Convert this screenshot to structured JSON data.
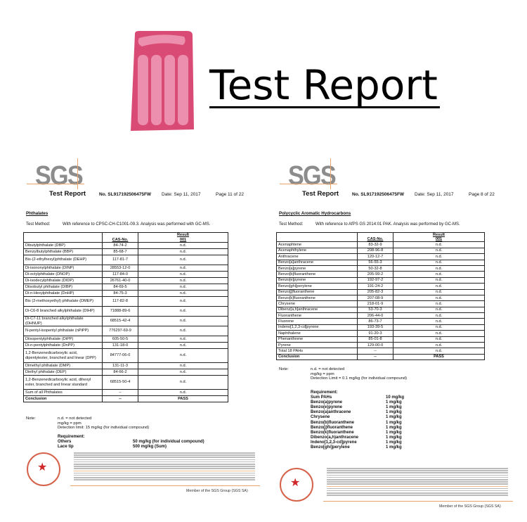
{
  "banner": {
    "title": "Test Report",
    "icon": "inflatable-pool-float",
    "accent": "#d94b75"
  },
  "left_doc": {
    "logo": "SGS",
    "header": {
      "title": "Test Report",
      "number": "No. SL917192506475FW",
      "date": "Date: Sep 11, 2017",
      "page": "Page 11 of 22"
    },
    "section": "Phthalates",
    "test_method_label": "Test Method:",
    "test_method": "With reference to CPSC-CH-C1001-09.3. Analysis was performed with GC-MS.",
    "col_cas": "CAS-No.",
    "col_result": "Result",
    "col_sample": "001",
    "rows": [
      {
        "name": "Dibutylphthalate (DBP)",
        "cas": "84-74-2",
        "result": "n.d.",
        "lines": 1
      },
      {
        "name": "Benzylbutylphthalate (BBP)",
        "cas": "85-68-7",
        "result": "n.d.",
        "lines": 1
      },
      {
        "name": "Bis-(2-ethylhexyl)phthalate (DEHP)",
        "cas": "117-81-7",
        "result": "n.d.",
        "lines": 2
      },
      {
        "name": "Di-isononylphthalate (DINP)",
        "cas": "28553-12-0",
        "result": "n.d.",
        "lines": 1
      },
      {
        "name": "Di-octylphthalate (DNOP)",
        "cas": "117-84-0",
        "result": "n.d.",
        "lines": 1
      },
      {
        "name": "Di-isodecylphthalate (DIDP)",
        "cas": "26761-40-0",
        "result": "n.d.",
        "lines": 1
      },
      {
        "name": "Diisobutyl phthalate (DIBP)",
        "cas": "84-69-5",
        "result": "n.d.",
        "lines": 1
      },
      {
        "name": "Di-n-Hexylphthalate (DnHP)",
        "cas": "84-75-3",
        "result": "n.d.",
        "lines": 1
      },
      {
        "name": "Bis (2-methoxyethyl) phthalate (DMEP)",
        "cas": "117-82-8",
        "result": "n.d.",
        "lines": 2
      },
      {
        "name": "Di-C6-8 branched alkylphthalate (DIHP)",
        "cas": "71888-89-6",
        "result": "n.d.",
        "lines": 2
      },
      {
        "name": "Di-C7-11 branched alkylphthalate (DHNUP)",
        "cas": "68515-42-4",
        "result": "n.d.",
        "lines": 2
      },
      {
        "name": "N-pentyl-isopentyl phthalate (nPiPP)",
        "cas": "776297-69-9",
        "result": "n.d.",
        "lines": 2
      },
      {
        "name": "Diisopentylphthalate (DiPP)",
        "cas": "605-50-5",
        "result": "n.d.",
        "lines": 1
      },
      {
        "name": "Di-n-pentylphthalate (DnPP)",
        "cas": "131-18-0",
        "result": "n.d.",
        "lines": 1
      },
      {
        "name": "1,2-Benzenedicarboxylic acid, dipentylester, branched and linear (DPP)",
        "cas": "84777-06-0",
        "result": "n.d.",
        "lines": 3
      },
      {
        "name": "Dimethyl phthalate (DMP)",
        "cas": "131-11-3",
        "result": "n.d.",
        "lines": 1
      },
      {
        "name": "Diethyl phthalate (DEP)",
        "cas": "84-66-2",
        "result": "n.d.",
        "lines": 1
      },
      {
        "name": "1,2-Benzenedicarboxylic acid, dihexyl ester, branched and linear standard",
        "cas": "68515-50-4",
        "result": "n.d.",
        "lines": 3
      },
      {
        "name": "Sum of all Phthalates",
        "cas": "--",
        "result": "n.d.",
        "lines": 1
      },
      {
        "name": "Conclusion",
        "cas": "--",
        "result": "PASS",
        "lines": 1,
        "bold": true
      }
    ],
    "note_label": "Note:",
    "notes": [
      "n.d. = not detected",
      "mg/kg = ppm",
      "Detection limit: 15 mg/kg (for individual compound)"
    ],
    "requirement_label": "Requirement:",
    "requirements": [
      {
        "item": "Others",
        "limit": "50 mg/kg (for individual compound)"
      },
      {
        "item": "Lace tip",
        "limit": "500 mg/kg (Sum)"
      }
    ],
    "member": "Member of the SGS Group (SGS SA)"
  },
  "right_doc": {
    "logo": "SGS",
    "header": {
      "title": "Test Report",
      "number": "No. SL917192506475FW",
      "date": "Date: Sep 11, 2017",
      "page": "Page 8 of 22"
    },
    "section": "Polycyclic Aromatic Hydrocarbons",
    "test_method_label": "Test Method:",
    "test_method": "With reference to AfPS GS 2014:01 PAK. Analysis was performed by GC-MS.",
    "col_cas": "CAS-No.",
    "col_result": "Result",
    "col_sample": "001",
    "rows": [
      {
        "name": "Acenaphtene",
        "cas": "83-32-9",
        "result": "n.d.",
        "lines": 1
      },
      {
        "name": "Acenaphthylene",
        "cas": "208-96-8",
        "result": "n.d.",
        "lines": 1
      },
      {
        "name": "Anthracene",
        "cas": "120-12-7",
        "result": "n.d.",
        "lines": 1
      },
      {
        "name": "Benzo[a]anthracene",
        "cas": "56-55-3",
        "result": "n.d.",
        "lines": 1
      },
      {
        "name": "Benzo[a]pyrene",
        "cas": "50-32-8",
        "result": "n.d.",
        "lines": 1
      },
      {
        "name": "Benzo[b]fluoranthene",
        "cas": "205-99-2",
        "result": "n.d.",
        "lines": 1
      },
      {
        "name": "Benzo[e]pyrene",
        "cas": "192-97-2",
        "result": "n.d.",
        "lines": 1
      },
      {
        "name": "Benzo[ghi]perylene",
        "cas": "191-24-2",
        "result": "n.d.",
        "lines": 1
      },
      {
        "name": "Benzo[j]fluoranthene",
        "cas": "205-82-3",
        "result": "n.d.",
        "lines": 1
      },
      {
        "name": "Benzo[k]fluoranthene",
        "cas": "207-08-9",
        "result": "n.d.",
        "lines": 1
      },
      {
        "name": "Chrysene",
        "cas": "218-01-9",
        "result": "n.d.",
        "lines": 1
      },
      {
        "name": "Dibenz[a,h]anthracene",
        "cas": "53-70-3",
        "result": "n.d.",
        "lines": 1
      },
      {
        "name": "Fluoranthene",
        "cas": "206-44-0",
        "result": "n.d.",
        "lines": 1
      },
      {
        "name": "Fluorene",
        "cas": "86-73-7",
        "result": "n.d.",
        "lines": 1
      },
      {
        "name": "Indeno[1,2,3-cd]pyrene",
        "cas": "193-39-5",
        "result": "n.d.",
        "lines": 1
      },
      {
        "name": "Naphthalene",
        "cas": "91-20-3",
        "result": "n.d.",
        "lines": 1
      },
      {
        "name": "Phenanthrene",
        "cas": "85-01-8",
        "result": "n.d.",
        "lines": 1
      },
      {
        "name": "Pyrene",
        "cas": "129-00-0",
        "result": "n.d.",
        "lines": 1
      },
      {
        "name": "Total 18 PAHs",
        "cas": "--",
        "result": "n.d.",
        "lines": 1
      },
      {
        "name": "Conclusion",
        "cas": "--",
        "result": "PASS",
        "lines": 1,
        "bold": true
      }
    ],
    "note_label": "Note:",
    "notes": [
      "n.d. = not detected",
      "mg/kg = ppm",
      "Detection Limit = 0.1 mg/kg (for individual compound)"
    ],
    "requirement_label": "Requirement:",
    "requirements": [
      {
        "item": "Sum PAHs",
        "limit": "10 mg/kg"
      },
      {
        "item": "Benzo(a)pyrene",
        "limit": "1 mg/kg"
      },
      {
        "item": "Benzo(e)pyrene",
        "limit": "1 mg/kg"
      },
      {
        "item": "Benzo(a)anthracene",
        "limit": "1 mg/kg"
      },
      {
        "item": "Chrysene",
        "limit": "1 mg/kg"
      },
      {
        "item": "Benzo(b)fluoranthene",
        "limit": "1 mg/kg"
      },
      {
        "item": "Benzo(j)fluoranthene",
        "limit": "1 mg/kg"
      },
      {
        "item": "Benzo(k)fluoranthene",
        "limit": "1 mg/kg"
      },
      {
        "item": "Dibenzo(a,h)anthracene",
        "limit": "1 mg/kg"
      },
      {
        "item": "Indeno[1,2,3-cd]pyrene",
        "limit": "1 mg/kg"
      },
      {
        "item": "Benzo[ghi]perylene",
        "limit": "1 mg/kg"
      }
    ],
    "member": "Member of the SGS Group (SGS SA)"
  }
}
